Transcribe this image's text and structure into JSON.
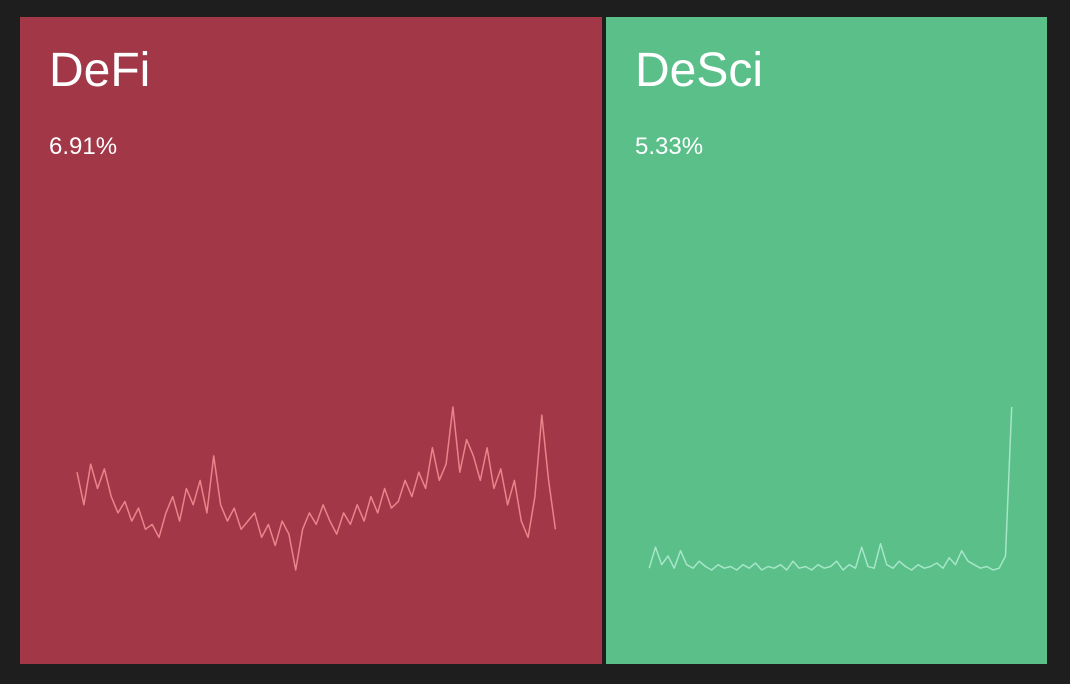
{
  "tiles": [
    {
      "label": "DeFi",
      "change": "6.91%",
      "color": "#a23748",
      "line_color": "#e8858a",
      "sparkline": [
        60,
        40,
        65,
        50,
        62,
        45,
        35,
        42,
        30,
        38,
        25,
        28,
        20,
        35,
        45,
        30,
        50,
        40,
        55,
        35,
        70,
        40,
        30,
        38,
        25,
        30,
        35,
        20,
        28,
        15,
        30,
        22,
        0,
        25,
        35,
        28,
        40,
        30,
        22,
        35,
        28,
        40,
        30,
        45,
        35,
        50,
        38,
        42,
        55,
        45,
        60,
        50,
        75,
        55,
        65,
        100,
        60,
        80,
        70,
        55,
        75,
        50,
        62,
        40,
        55,
        30,
        20,
        45,
        95,
        55,
        25
      ]
    },
    {
      "label": "DeSci",
      "change": "5.33%",
      "color": "#5bbf89",
      "line_color": "#a6e6c9",
      "sparkline": [
        8,
        20,
        10,
        15,
        8,
        18,
        10,
        8,
        12,
        9,
        7,
        10,
        8,
        9,
        7,
        10,
        8,
        11,
        7,
        9,
        8,
        10,
        7,
        12,
        8,
        9,
        7,
        10,
        8,
        9,
        12,
        7,
        10,
        8,
        20,
        9,
        8,
        22,
        10,
        8,
        12,
        9,
        7,
        10,
        8,
        9,
        11,
        8,
        14,
        10,
        18,
        12,
        10,
        8,
        9,
        7,
        8,
        15,
        100
      ]
    }
  ]
}
